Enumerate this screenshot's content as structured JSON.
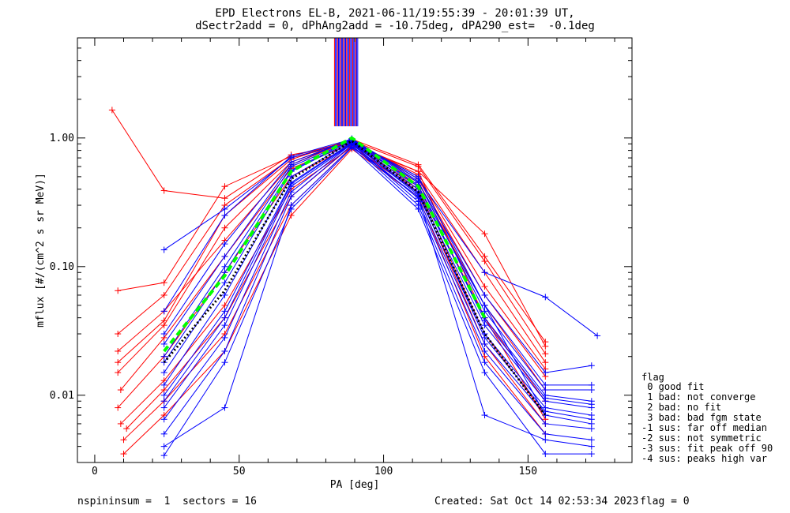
{
  "title_line1": "EPD Electrons EL-B, 2021-06-11/19:55:39 - 20:01:39 UT,",
  "title_line2": "dSectr2add = 0, dPhAng2add = -10.75deg, dPA290_est=  -0.1deg",
  "footer": {
    "left": "nspininsum =  1  sectors = 16",
    "created": "Created: Sat Oct 14 02:53:34 2023",
    "flag": "flag = 0"
  },
  "legend": {
    "title": "flag",
    "items": [
      " 0 good fit",
      " 1 bad: not converge",
      " 2 bad: no fit",
      " 3 bad: bad fgm state",
      "-1 sus: far off median",
      "-2 sus: not symmetric",
      "-3 sus: fit peak off 90",
      "-4 sus: peaks high var"
    ]
  },
  "colors": {
    "red_series": "#ff0000",
    "blue_series": "#0000ff",
    "green_fit": "#00ff00",
    "black_fit": "#000000",
    "axes": "#000000"
  },
  "chart_data": {
    "type": "line",
    "xlabel": "PA [deg]",
    "ylabel": "mflux [#/(cm^2 s sr MeV)]",
    "xlim": [
      -6,
      186
    ],
    "ylog": true,
    "ylim": [
      0.003,
      6
    ],
    "xticks": [
      0,
      50,
      100,
      150
    ],
    "xtick_labels": [
      "0",
      "50",
      "100",
      "150"
    ],
    "yticks": [
      0.01,
      0.1,
      1.0
    ],
    "ytick_labels": [
      "0.01",
      "0.10",
      "1.00"
    ],
    "series": [
      {
        "color": "red",
        "x": [
          6,
          24,
          45,
          68,
          89,
          112,
          135,
          156
        ],
        "y": [
          1.65,
          0.39,
          0.34,
          0.74,
          0.9,
          0.55,
          0.18,
          0.024
        ]
      },
      {
        "color": "red",
        "x": [
          8,
          24,
          45,
          68,
          89,
          112,
          135,
          156
        ],
        "y": [
          0.065,
          0.075,
          0.42,
          0.72,
          0.95,
          0.6,
          0.11,
          0.021
        ]
      },
      {
        "color": "red",
        "x": [
          8,
          24,
          45,
          68,
          89,
          112,
          135,
          156
        ],
        "y": [
          0.03,
          0.06,
          0.3,
          0.7,
          0.92,
          0.52,
          0.09,
          0.018
        ]
      },
      {
        "color": "red",
        "x": [
          8,
          24,
          45,
          68,
          89,
          112,
          135,
          156
        ],
        "y": [
          0.015,
          0.035,
          0.2,
          0.65,
          0.95,
          0.48,
          0.06,
          0.014
        ]
      },
      {
        "color": "red",
        "x": [
          9,
          24,
          45,
          68,
          89,
          112,
          135,
          156
        ],
        "y": [
          0.011,
          0.028,
          0.12,
          0.58,
          0.9,
          0.45,
          0.05,
          0.011
        ]
      },
      {
        "color": "red",
        "x": [
          8,
          24,
          45,
          68,
          89,
          112,
          135,
          156
        ],
        "y": [
          0.008,
          0.02,
          0.09,
          0.5,
          0.88,
          0.42,
          0.04,
          0.009
        ]
      },
      {
        "color": "red",
        "x": [
          9,
          24,
          45,
          68,
          89,
          112,
          135,
          156
        ],
        "y": [
          0.006,
          0.013,
          0.05,
          0.4,
          0.85,
          0.4,
          0.03,
          0.007
        ]
      },
      {
        "color": "red",
        "x": [
          10,
          24,
          45,
          68,
          89,
          112,
          135,
          156
        ],
        "y": [
          0.0045,
          0.009,
          0.03,
          0.3,
          0.85,
          0.38,
          0.025,
          0.006
        ]
      },
      {
        "color": "red",
        "x": [
          8,
          24,
          45,
          68,
          89,
          112,
          135,
          156
        ],
        "y": [
          0.022,
          0.045,
          0.16,
          0.62,
          0.96,
          0.5,
          0.07,
          0.016
        ]
      },
      {
        "color": "red",
        "x": [
          10,
          24,
          45,
          68,
          89,
          112,
          135,
          156
        ],
        "y": [
          0.0035,
          0.007,
          0.022,
          0.25,
          0.82,
          0.35,
          0.02,
          0.005
        ]
      },
      {
        "color": "red",
        "x": [
          11,
          24,
          45,
          68,
          89,
          112,
          135,
          156
        ],
        "y": [
          0.0055,
          0.011,
          0.04,
          0.35,
          0.87,
          0.55,
          0.04,
          0.0065
        ]
      },
      {
        "color": "red",
        "x": [
          8,
          24,
          45,
          68,
          89,
          112,
          135,
          156
        ],
        "y": [
          0.018,
          0.038,
          0.25,
          0.68,
          0.98,
          0.62,
          0.12,
          0.026
        ]
      },
      {
        "color": "blue",
        "x": [
          24,
          45,
          68,
          89,
          112,
          135,
          156
        ],
        "y": [
          0.135,
          0.28,
          0.7,
          0.95,
          0.5,
          0.05,
          0.007
        ]
      },
      {
        "color": "blue",
        "x": [
          24,
          45,
          68,
          89,
          112,
          135,
          156,
          174
        ],
        "y": [
          0.045,
          0.25,
          0.72,
          0.98,
          0.48,
          0.09,
          0.058,
          0.029
        ]
      },
      {
        "color": "blue",
        "x": [
          24,
          45,
          68,
          89,
          112,
          135,
          156,
          172
        ],
        "y": [
          0.03,
          0.15,
          0.65,
          0.97,
          0.45,
          0.06,
          0.015,
          0.017
        ]
      },
      {
        "color": "blue",
        "x": [
          24,
          45,
          68,
          89,
          112,
          135,
          156,
          172
        ],
        "y": [
          0.02,
          0.1,
          0.6,
          0.95,
          0.42,
          0.05,
          0.012,
          0.012
        ]
      },
      {
        "color": "blue",
        "x": [
          24,
          45,
          68,
          89,
          112,
          135,
          156,
          172
        ],
        "y": [
          0.015,
          0.075,
          0.55,
          0.94,
          0.4,
          0.04,
          0.01,
          0.009
        ]
      },
      {
        "color": "blue",
        "x": [
          24,
          45,
          68,
          89,
          112,
          135,
          156,
          172
        ],
        "y": [
          0.012,
          0.06,
          0.5,
          0.93,
          0.38,
          0.035,
          0.009,
          0.008
        ]
      },
      {
        "color": "blue",
        "x": [
          24,
          45,
          68,
          89,
          112,
          135,
          156,
          172
        ],
        "y": [
          0.01,
          0.045,
          0.45,
          0.92,
          0.36,
          0.03,
          0.008,
          0.007
        ]
      },
      {
        "color": "blue",
        "x": [
          24,
          45,
          68,
          89,
          112,
          135,
          156,
          172
        ],
        "y": [
          0.008,
          0.035,
          0.42,
          0.9,
          0.34,
          0.025,
          0.007,
          0.006
        ]
      },
      {
        "color": "blue",
        "x": [
          24,
          45,
          68,
          89,
          112,
          135,
          156,
          172
        ],
        "y": [
          0.0065,
          0.028,
          0.38,
          0.9,
          0.32,
          0.022,
          0.006,
          0.0055
        ]
      },
      {
        "color": "blue",
        "x": [
          24,
          45,
          68,
          89,
          112,
          135,
          156,
          172
        ],
        "y": [
          0.005,
          0.022,
          0.35,
          0.88,
          0.3,
          0.018,
          0.005,
          0.0045
        ]
      },
      {
        "color": "blue",
        "x": [
          24,
          45,
          68,
          89,
          112,
          135,
          156,
          172
        ],
        "y": [
          0.004,
          0.008,
          0.3,
          0.85,
          0.35,
          0.007,
          0.0045,
          0.004
        ]
      },
      {
        "color": "blue",
        "x": [
          24,
          45,
          68,
          89,
          112,
          135,
          156,
          172
        ],
        "y": [
          0.0034,
          0.018,
          0.28,
          0.84,
          0.28,
          0.015,
          0.0035,
          0.0035
        ]
      },
      {
        "color": "blue",
        "x": [
          24,
          45,
          68,
          89,
          112,
          135,
          156,
          172
        ],
        "y": [
          0.025,
          0.12,
          0.62,
          0.99,
          0.46,
          0.045,
          0.011,
          0.011
        ]
      },
      {
        "color": "blue",
        "x": [
          24,
          45,
          68,
          89,
          112,
          135,
          156,
          172
        ],
        "y": [
          0.018,
          0.09,
          0.56,
          0.96,
          0.43,
          0.038,
          0.0095,
          0.0085
        ]
      },
      {
        "color": "blue",
        "x": [
          24,
          45,
          68,
          89,
          112,
          135,
          156,
          172
        ],
        "y": [
          0.009,
          0.04,
          0.44,
          0.91,
          0.37,
          0.028,
          0.0075,
          0.0065
        ]
      }
    ],
    "fits": [
      {
        "name": "green",
        "style": "dashed",
        "x": [
          24,
          45,
          68,
          89,
          112,
          135
        ],
        "y": [
          0.022,
          0.085,
          0.55,
          1.0,
          0.42,
          0.04
        ]
      },
      {
        "name": "black",
        "style": "dotted",
        "x": [
          24,
          45,
          68,
          89,
          112,
          135,
          156
        ],
        "y": [
          0.018,
          0.065,
          0.48,
          0.95,
          0.38,
          0.03,
          0.007
        ]
      }
    ]
  }
}
